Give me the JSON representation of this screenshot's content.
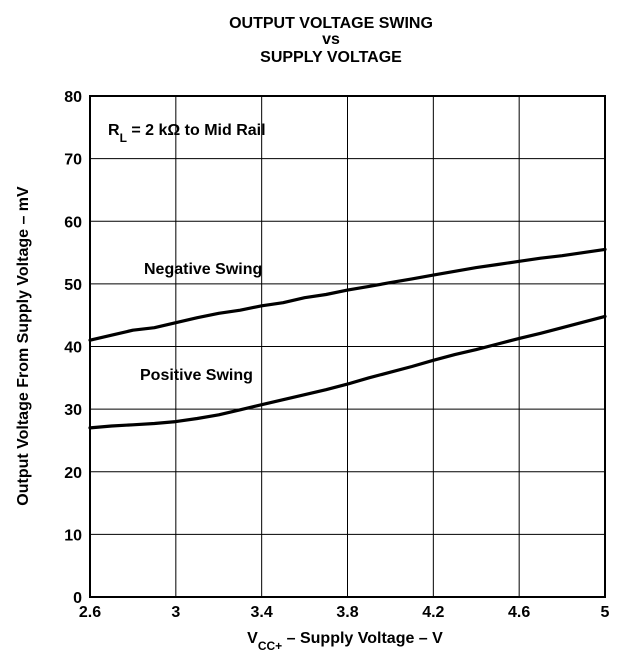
{
  "chart_data": {
    "type": "line",
    "title": [
      "OUTPUT VOLTAGE SWING",
      "vs",
      "SUPPLY VOLTAGE"
    ],
    "xlabel": {
      "parts": [
        {
          "text": "V",
          "style": "normal"
        },
        {
          "text": "CC+",
          "style": "sub"
        },
        {
          "text": " – Supply Voltage – V",
          "style": "normal"
        }
      ]
    },
    "ylabel": "Output Voltage From Supply Voltage – mV",
    "xlim": [
      2.6,
      5
    ],
    "ylim": [
      0,
      80
    ],
    "xticks": [
      2.6,
      3,
      3.4,
      3.8,
      4.2,
      4.6,
      5
    ],
    "xtick_labels": [
      "2.6",
      "3",
      "3.4",
      "3.8",
      "4.2",
      "4.6",
      "5"
    ],
    "yticks": [
      0,
      10,
      20,
      30,
      40,
      50,
      60,
      70,
      80
    ],
    "ytick_labels": [
      "0",
      "10",
      "20",
      "30",
      "40",
      "50",
      "60",
      "70",
      "80"
    ],
    "grid": true,
    "condition": {
      "parts": [
        {
          "text": "R",
          "style": "normal"
        },
        {
          "text": "L",
          "style": "sub"
        },
        {
          "text": "  = 2 kΩ to Mid Rail",
          "style": "normal"
        }
      ]
    },
    "series": [
      {
        "name": "Negative Swing",
        "x": [
          2.6,
          2.7,
          2.8,
          2.9,
          3.0,
          3.1,
          3.2,
          3.3,
          3.4,
          3.5,
          3.6,
          3.7,
          3.8,
          3.9,
          4.0,
          4.1,
          4.2,
          4.3,
          4.4,
          4.5,
          4.6,
          4.7,
          4.8,
          4.9,
          5.0
        ],
        "y": [
          41.0,
          41.8,
          42.6,
          43.0,
          43.8,
          44.6,
          45.3,
          45.8,
          46.5,
          47.0,
          47.8,
          48.3,
          49.0,
          49.6,
          50.2,
          50.8,
          51.4,
          52.0,
          52.6,
          53.1,
          53.6,
          54.1,
          54.5,
          55.0,
          55.5
        ]
      },
      {
        "name": "Positive Swing",
        "x": [
          2.6,
          2.7,
          2.8,
          2.9,
          3.0,
          3.1,
          3.2,
          3.3,
          3.4,
          3.5,
          3.6,
          3.7,
          3.8,
          3.9,
          4.0,
          4.1,
          4.2,
          4.3,
          4.4,
          4.5,
          4.6,
          4.7,
          4.8,
          4.9,
          5.0
        ],
        "y": [
          27.0,
          27.3,
          27.5,
          27.7,
          28.0,
          28.5,
          29.1,
          29.9,
          30.7,
          31.5,
          32.3,
          33.1,
          34.0,
          35.0,
          35.9,
          36.8,
          37.8,
          38.7,
          39.5,
          40.4,
          41.3,
          42.1,
          43.0,
          43.9,
          44.8
        ]
      }
    ]
  }
}
